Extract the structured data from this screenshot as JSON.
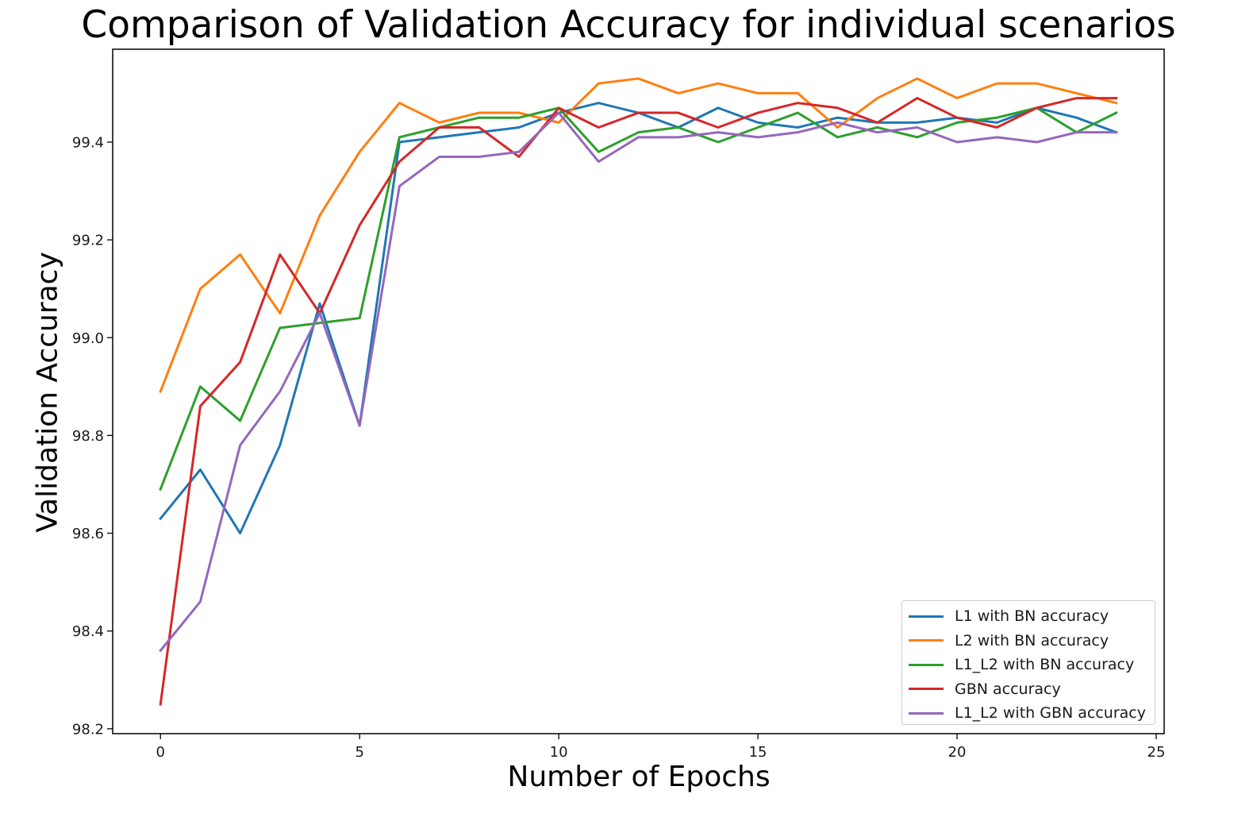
{
  "chart_data": {
    "type": "line",
    "title": "Comparison of Validation Accuracy for individual scenarios",
    "xlabel": "Number of Epochs",
    "ylabel": "Validation Accuracy",
    "xlim": [
      -1.2,
      25.2
    ],
    "ylim": [
      98.19,
      99.59
    ],
    "xticks": [
      0,
      5,
      10,
      15,
      20,
      25
    ],
    "yticks": [
      98.2,
      98.4,
      98.6,
      98.8,
      99.0,
      99.2,
      99.4
    ],
    "ytick_labels": [
      "98.2",
      "98.4",
      "98.6",
      "98.8",
      "99.0",
      "99.2",
      "99.4"
    ],
    "xtick_labels": [
      "0",
      "5",
      "10",
      "15",
      "20",
      "25"
    ],
    "legend_position": "lower-right",
    "grid": false,
    "x": [
      0,
      1,
      2,
      3,
      4,
      5,
      6,
      7,
      8,
      9,
      10,
      11,
      12,
      13,
      14,
      15,
      16,
      17,
      18,
      19,
      20,
      21,
      22,
      23,
      24
    ],
    "series": [
      {
        "name": "L1 with BN accuracy",
        "color": "#1f77b4",
        "values": [
          98.63,
          98.73,
          98.6,
          98.78,
          99.07,
          98.82,
          99.4,
          99.41,
          99.42,
          99.43,
          99.46,
          99.48,
          99.46,
          99.43,
          99.47,
          99.44,
          99.43,
          99.45,
          99.44,
          99.44,
          99.45,
          99.44,
          99.47,
          99.45,
          99.42
        ]
      },
      {
        "name": "L2 with BN accuracy",
        "color": "#ff7f0e",
        "values": [
          98.89,
          99.1,
          99.17,
          99.05,
          99.25,
          99.38,
          99.48,
          99.44,
          99.46,
          99.46,
          99.44,
          99.52,
          99.53,
          99.5,
          99.52,
          99.5,
          99.5,
          99.43,
          99.49,
          99.53,
          99.49,
          99.52,
          99.52,
          99.5,
          99.48
        ]
      },
      {
        "name": "L1_L2 with BN accuracy",
        "color": "#2ca02c",
        "values": [
          98.69,
          98.9,
          98.83,
          99.02,
          99.03,
          99.04,
          99.41,
          99.43,
          99.45,
          99.45,
          99.47,
          99.38,
          99.42,
          99.43,
          99.4,
          99.43,
          99.46,
          99.41,
          99.43,
          99.41,
          99.44,
          99.45,
          99.47,
          99.42,
          99.46
        ]
      },
      {
        "name": "GBN accuracy",
        "color": "#d62728",
        "values": [
          98.25,
          98.86,
          98.95,
          99.17,
          99.05,
          99.23,
          99.36,
          99.43,
          99.43,
          99.37,
          99.47,
          99.43,
          99.46,
          99.46,
          99.43,
          99.46,
          99.48,
          99.47,
          99.44,
          99.49,
          99.45,
          99.43,
          99.47,
          99.49,
          99.49
        ]
      },
      {
        "name": "L1_L2 with GBN accuracy",
        "color": "#9467bd",
        "values": [
          98.36,
          98.46,
          98.78,
          98.89,
          99.05,
          98.82,
          99.31,
          99.37,
          99.37,
          99.38,
          99.46,
          99.36,
          99.41,
          99.41,
          99.42,
          99.41,
          99.42,
          99.44,
          99.42,
          99.43,
          99.4,
          99.41,
          99.4,
          99.42,
          99.42
        ]
      }
    ]
  }
}
